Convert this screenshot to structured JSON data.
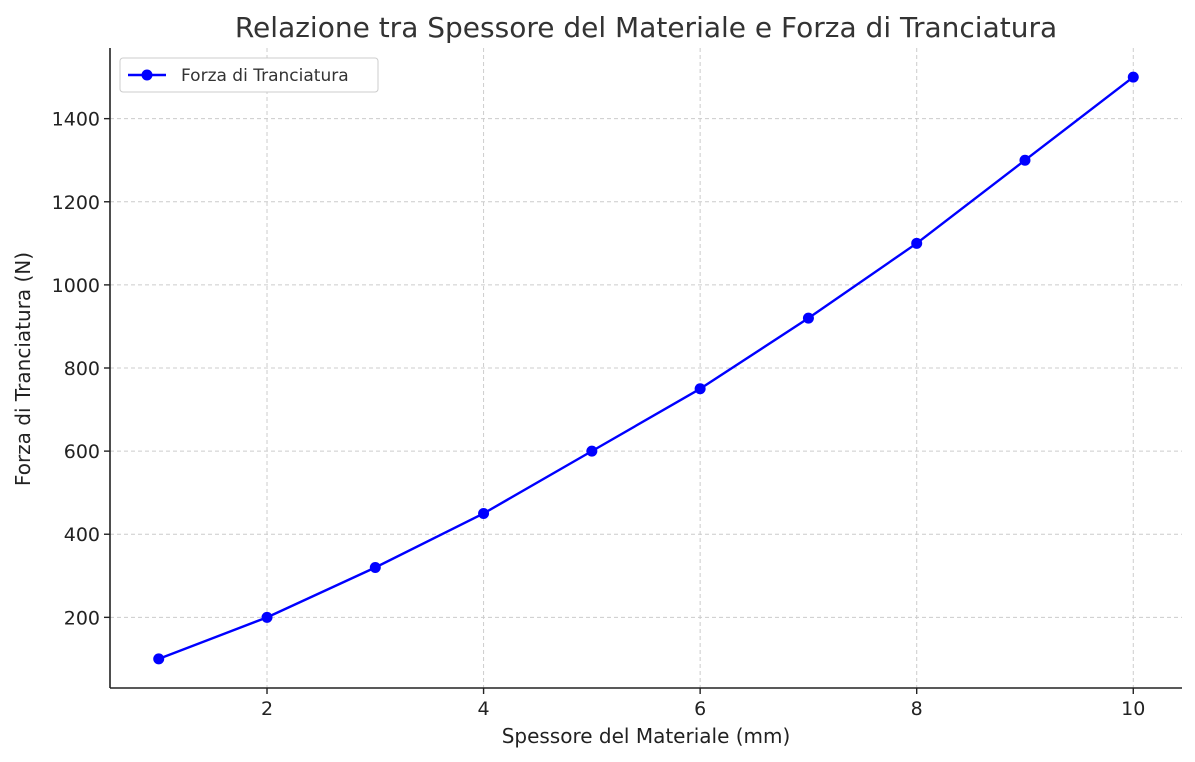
{
  "chart_data": {
    "type": "line",
    "title": "Relazione tra Spessore del Materiale e Forza di Tranciatura",
    "xlabel": "Spessore del Materiale (mm)",
    "ylabel": "Forza di Tranciatura (N)",
    "xlim": [
      0.55,
      10.45
    ],
    "ylim": [
      30,
      1570
    ],
    "x_ticks": [
      2,
      4,
      6,
      8,
      10
    ],
    "y_ticks": [
      200,
      400,
      600,
      800,
      1000,
      1200,
      1400
    ],
    "grid": true,
    "legend_position": "top-left",
    "series": [
      {
        "name": "Forza di Tranciatura",
        "color": "#0000ff",
        "marker": "circle",
        "x": [
          1,
          2,
          3,
          4,
          5,
          6,
          7,
          8,
          9,
          10
        ],
        "y": [
          100,
          200,
          320,
          450,
          600,
          750,
          920,
          1100,
          1300,
          1500
        ]
      }
    ]
  }
}
